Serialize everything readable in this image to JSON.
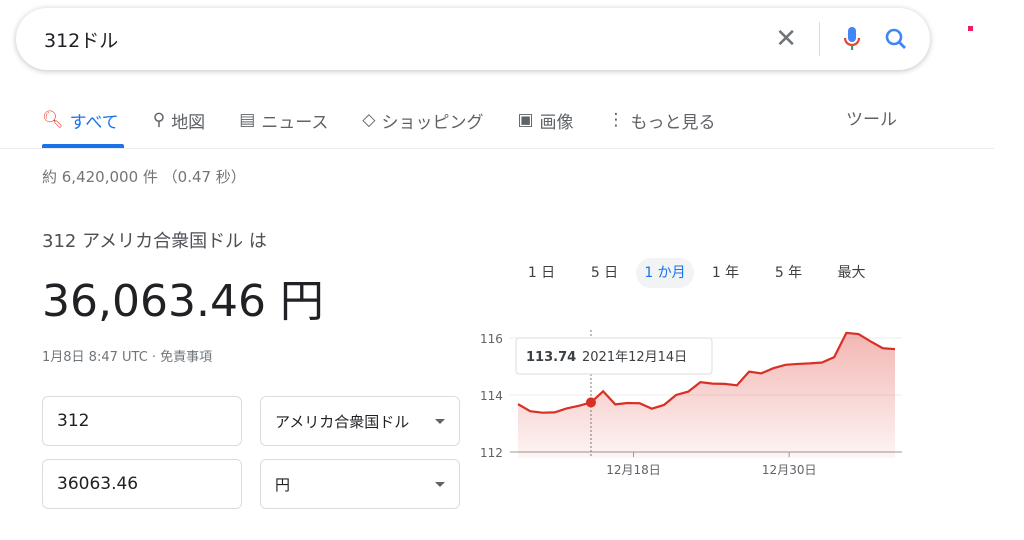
{
  "search": {
    "query": "312ドル"
  },
  "tabs": [
    {
      "label": "すべて",
      "icon": "search-icon",
      "active": true
    },
    {
      "label": "地図",
      "icon": "map-pin-icon"
    },
    {
      "label": "ニュース",
      "icon": "news-icon"
    },
    {
      "label": "ショッピング",
      "icon": "tag-icon"
    },
    {
      "label": "画像",
      "icon": "image-icon"
    },
    {
      "label": "もっと見る",
      "icon": "more-vert-icon"
    }
  ],
  "tools": "ツール",
  "stats": "約 6,420,000 件 （0.47 秒）",
  "converter": {
    "from_text": "312 アメリカ合衆国ドル は",
    "result": "36,063.46 円",
    "time": "1月8日 8:47 UTC · 免責事項",
    "amount1": "312",
    "currency1": "アメリカ合衆国ドル",
    "amount2": "36063.46",
    "currency2": "円"
  },
  "ranges": [
    "1 日",
    "5 日",
    "1 か月",
    "1 年",
    "5 年",
    "最大"
  ],
  "active_range": 2,
  "colors": {
    "accent": "#1a73e8",
    "line": "#d93025"
  },
  "chart_data": {
    "type": "area",
    "yticks": [
      112,
      114,
      116
    ],
    "ylim": [
      112,
      116.3
    ],
    "values": [
      113.68,
      113.43,
      113.38,
      113.39,
      113.53,
      113.62,
      113.74,
      114.13,
      113.67,
      113.72,
      113.71,
      113.52,
      113.65,
      114.0,
      114.12,
      114.45,
      114.4,
      114.39,
      114.34,
      114.82,
      114.76,
      114.94,
      115.06,
      115.09,
      115.11,
      115.14,
      115.33,
      116.18,
      116.14,
      115.88,
      115.64,
      115.61
    ],
    "xticks": [
      {
        "label": "12月18日",
        "index": 9.5
      },
      {
        "label": "12月30日",
        "index": 22.3
      }
    ],
    "tooltip": {
      "index": 6,
      "value": "113.74",
      "date": "2021年12月14日"
    }
  }
}
